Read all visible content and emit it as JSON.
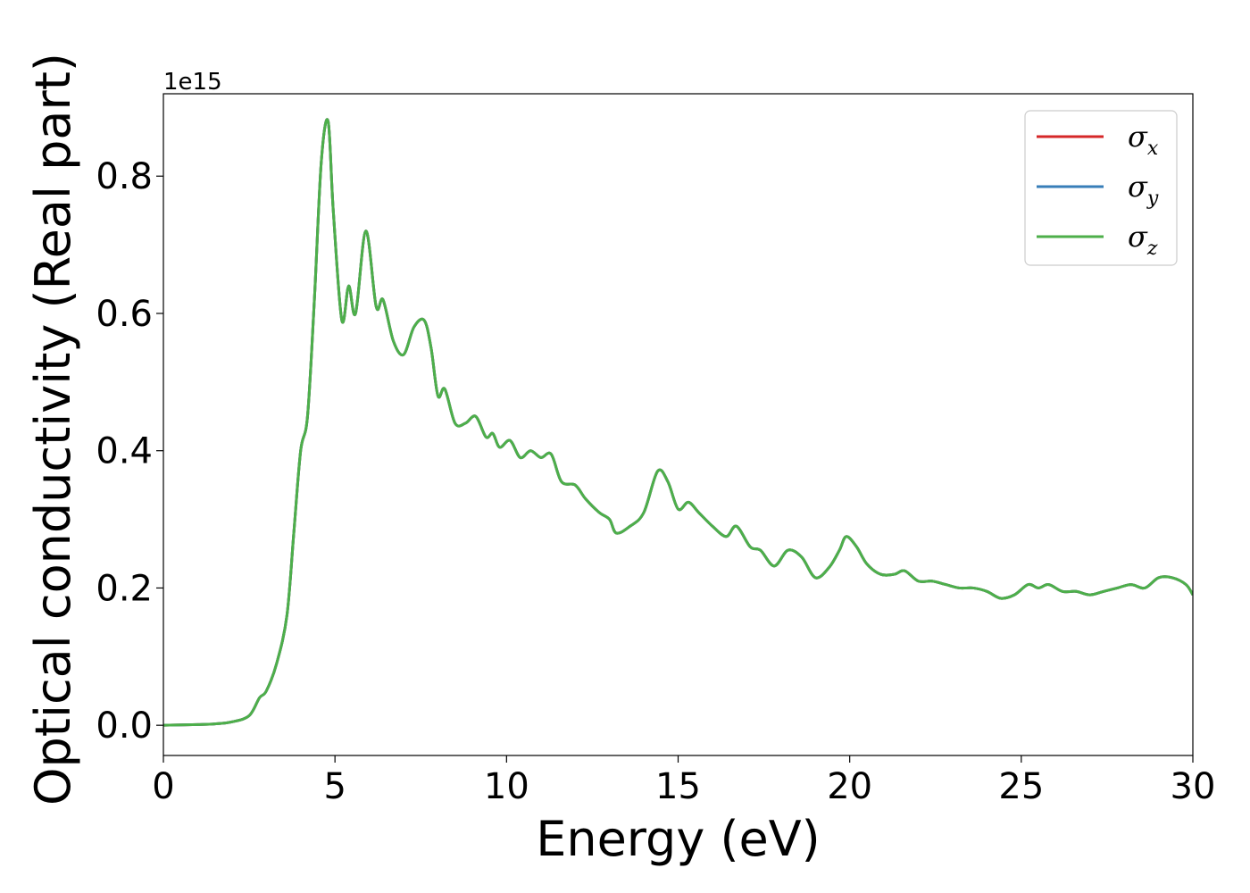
{
  "chart_data": {
    "type": "line",
    "title": "",
    "xlabel": "Energy (eV)",
    "ylabel": "Optical conductivity (Real part)",
    "offset_text": "1e15",
    "xlim": [
      0,
      30
    ],
    "ylim": [
      -0.044,
      0.92
    ],
    "xticks": [
      "0",
      "5",
      "10",
      "15",
      "20",
      "25",
      "30"
    ],
    "yticks": [
      "0.0",
      "0.2",
      "0.4",
      "0.6",
      "0.8"
    ],
    "grid": false,
    "legend": "top-right",
    "series": [
      {
        "symbol": "σ",
        "sub": "x",
        "color": "#d62728",
        "points": [
          [
            0,
            0.0
          ],
          [
            1,
            0.001
          ],
          [
            1.5,
            0.002
          ],
          [
            2,
            0.005
          ],
          [
            2.5,
            0.014
          ],
          [
            2.8,
            0.04
          ],
          [
            3.0,
            0.05
          ],
          [
            3.3,
            0.09
          ],
          [
            3.6,
            0.16
          ],
          [
            3.8,
            0.28
          ],
          [
            4.0,
            0.4
          ],
          [
            4.2,
            0.45
          ],
          [
            4.4,
            0.62
          ],
          [
            4.6,
            0.82
          ],
          [
            4.8,
            0.88
          ],
          [
            4.95,
            0.75
          ],
          [
            5.2,
            0.59
          ],
          [
            5.4,
            0.64
          ],
          [
            5.6,
            0.6
          ],
          [
            5.9,
            0.72
          ],
          [
            6.2,
            0.61
          ],
          [
            6.4,
            0.62
          ],
          [
            6.7,
            0.56
          ],
          [
            7.0,
            0.54
          ],
          [
            7.3,
            0.58
          ],
          [
            7.6,
            0.59
          ],
          [
            7.8,
            0.55
          ],
          [
            8.0,
            0.48
          ],
          [
            8.2,
            0.49
          ],
          [
            8.5,
            0.44
          ],
          [
            8.8,
            0.44
          ],
          [
            9.1,
            0.45
          ],
          [
            9.4,
            0.42
          ],
          [
            9.6,
            0.425
          ],
          [
            9.8,
            0.405
          ],
          [
            10.1,
            0.415
          ],
          [
            10.4,
            0.39
          ],
          [
            10.7,
            0.4
          ],
          [
            11.0,
            0.39
          ],
          [
            11.3,
            0.395
          ],
          [
            11.6,
            0.355
          ],
          [
            12.0,
            0.35
          ],
          [
            12.3,
            0.33
          ],
          [
            12.7,
            0.31
          ],
          [
            13.0,
            0.3
          ],
          [
            13.2,
            0.28
          ],
          [
            13.6,
            0.29
          ],
          [
            14.0,
            0.31
          ],
          [
            14.4,
            0.37
          ],
          [
            14.7,
            0.355
          ],
          [
            15.0,
            0.315
          ],
          [
            15.3,
            0.325
          ],
          [
            15.6,
            0.31
          ],
          [
            16.0,
            0.29
          ],
          [
            16.4,
            0.275
          ],
          [
            16.7,
            0.29
          ],
          [
            17.1,
            0.26
          ],
          [
            17.4,
            0.255
          ],
          [
            17.8,
            0.232
          ],
          [
            18.2,
            0.255
          ],
          [
            18.6,
            0.245
          ],
          [
            19.0,
            0.215
          ],
          [
            19.4,
            0.23
          ],
          [
            19.7,
            0.255
          ],
          [
            19.9,
            0.275
          ],
          [
            20.2,
            0.26
          ],
          [
            20.5,
            0.235
          ],
          [
            20.9,
            0.22
          ],
          [
            21.3,
            0.22
          ],
          [
            21.6,
            0.225
          ],
          [
            22.0,
            0.21
          ],
          [
            22.4,
            0.21
          ],
          [
            22.8,
            0.205
          ],
          [
            23.2,
            0.2
          ],
          [
            23.6,
            0.2
          ],
          [
            24.0,
            0.195
          ],
          [
            24.4,
            0.185
          ],
          [
            24.8,
            0.19
          ],
          [
            25.2,
            0.205
          ],
          [
            25.5,
            0.2
          ],
          [
            25.8,
            0.205
          ],
          [
            26.2,
            0.195
          ],
          [
            26.6,
            0.195
          ],
          [
            27.0,
            0.19
          ],
          [
            27.4,
            0.195
          ],
          [
            27.8,
            0.2
          ],
          [
            28.2,
            0.205
          ],
          [
            28.6,
            0.2
          ],
          [
            29.0,
            0.215
          ],
          [
            29.4,
            0.215
          ],
          [
            29.8,
            0.205
          ],
          [
            30.0,
            0.19
          ]
        ]
      },
      {
        "symbol": "σ",
        "sub": "y",
        "color": "#377eb8",
        "points": [
          [
            0,
            0.0
          ],
          [
            1,
            0.001
          ],
          [
            1.5,
            0.002
          ],
          [
            2,
            0.005
          ],
          [
            2.5,
            0.014
          ],
          [
            2.8,
            0.04
          ],
          [
            3.0,
            0.05
          ],
          [
            3.3,
            0.09
          ],
          [
            3.6,
            0.16
          ],
          [
            3.8,
            0.28
          ],
          [
            4.0,
            0.4
          ],
          [
            4.2,
            0.45
          ],
          [
            4.4,
            0.62
          ],
          [
            4.6,
            0.82
          ],
          [
            4.8,
            0.88
          ],
          [
            4.95,
            0.75
          ],
          [
            5.2,
            0.59
          ],
          [
            5.4,
            0.64
          ],
          [
            5.6,
            0.6
          ],
          [
            5.9,
            0.72
          ],
          [
            6.2,
            0.61
          ],
          [
            6.4,
            0.62
          ],
          [
            6.7,
            0.56
          ],
          [
            7.0,
            0.54
          ],
          [
            7.3,
            0.58
          ],
          [
            7.6,
            0.59
          ],
          [
            7.8,
            0.55
          ],
          [
            8.0,
            0.48
          ],
          [
            8.2,
            0.49
          ],
          [
            8.5,
            0.44
          ],
          [
            8.8,
            0.44
          ],
          [
            9.1,
            0.45
          ],
          [
            9.4,
            0.42
          ],
          [
            9.6,
            0.425
          ],
          [
            9.8,
            0.405
          ],
          [
            10.1,
            0.415
          ],
          [
            10.4,
            0.39
          ],
          [
            10.7,
            0.4
          ],
          [
            11.0,
            0.39
          ],
          [
            11.3,
            0.395
          ],
          [
            11.6,
            0.355
          ],
          [
            12.0,
            0.35
          ],
          [
            12.3,
            0.33
          ],
          [
            12.7,
            0.31
          ],
          [
            13.0,
            0.3
          ],
          [
            13.2,
            0.28
          ],
          [
            13.6,
            0.29
          ],
          [
            14.0,
            0.31
          ],
          [
            14.4,
            0.37
          ],
          [
            14.7,
            0.355
          ],
          [
            15.0,
            0.315
          ],
          [
            15.3,
            0.325
          ],
          [
            15.6,
            0.31
          ],
          [
            16.0,
            0.29
          ],
          [
            16.4,
            0.275
          ],
          [
            16.7,
            0.29
          ],
          [
            17.1,
            0.26
          ],
          [
            17.4,
            0.255
          ],
          [
            17.8,
            0.232
          ],
          [
            18.2,
            0.255
          ],
          [
            18.6,
            0.245
          ],
          [
            19.0,
            0.215
          ],
          [
            19.4,
            0.23
          ],
          [
            19.7,
            0.255
          ],
          [
            19.9,
            0.275
          ],
          [
            20.2,
            0.26
          ],
          [
            20.5,
            0.235
          ],
          [
            20.9,
            0.22
          ],
          [
            21.3,
            0.22
          ],
          [
            21.6,
            0.225
          ],
          [
            22.0,
            0.21
          ],
          [
            22.4,
            0.21
          ],
          [
            22.8,
            0.205
          ],
          [
            23.2,
            0.2
          ],
          [
            23.6,
            0.2
          ],
          [
            24.0,
            0.195
          ],
          [
            24.4,
            0.185
          ],
          [
            24.8,
            0.19
          ],
          [
            25.2,
            0.205
          ],
          [
            25.5,
            0.2
          ],
          [
            25.8,
            0.205
          ],
          [
            26.2,
            0.195
          ],
          [
            26.6,
            0.195
          ],
          [
            27.0,
            0.19
          ],
          [
            27.4,
            0.195
          ],
          [
            27.8,
            0.2
          ],
          [
            28.2,
            0.205
          ],
          [
            28.6,
            0.2
          ],
          [
            29.0,
            0.215
          ],
          [
            29.4,
            0.215
          ],
          [
            29.8,
            0.205
          ],
          [
            30.0,
            0.19
          ]
        ]
      },
      {
        "symbol": "σ",
        "sub": "z",
        "color": "#4daf4a",
        "points": [
          [
            0,
            0.0
          ],
          [
            1,
            0.001
          ],
          [
            1.5,
            0.002
          ],
          [
            2,
            0.005
          ],
          [
            2.5,
            0.014
          ],
          [
            2.8,
            0.04
          ],
          [
            3.0,
            0.05
          ],
          [
            3.3,
            0.09
          ],
          [
            3.6,
            0.16
          ],
          [
            3.8,
            0.28
          ],
          [
            4.0,
            0.4
          ],
          [
            4.2,
            0.45
          ],
          [
            4.4,
            0.62
          ],
          [
            4.6,
            0.82
          ],
          [
            4.8,
            0.88
          ],
          [
            4.95,
            0.75
          ],
          [
            5.2,
            0.59
          ],
          [
            5.4,
            0.64
          ],
          [
            5.6,
            0.6
          ],
          [
            5.9,
            0.72
          ],
          [
            6.2,
            0.61
          ],
          [
            6.4,
            0.62
          ],
          [
            6.7,
            0.56
          ],
          [
            7.0,
            0.54
          ],
          [
            7.3,
            0.58
          ],
          [
            7.6,
            0.59
          ],
          [
            7.8,
            0.55
          ],
          [
            8.0,
            0.48
          ],
          [
            8.2,
            0.49
          ],
          [
            8.5,
            0.44
          ],
          [
            8.8,
            0.44
          ],
          [
            9.1,
            0.45
          ],
          [
            9.4,
            0.42
          ],
          [
            9.6,
            0.425
          ],
          [
            9.8,
            0.405
          ],
          [
            10.1,
            0.415
          ],
          [
            10.4,
            0.39
          ],
          [
            10.7,
            0.4
          ],
          [
            11.0,
            0.39
          ],
          [
            11.3,
            0.395
          ],
          [
            11.6,
            0.355
          ],
          [
            12.0,
            0.35
          ],
          [
            12.3,
            0.33
          ],
          [
            12.7,
            0.31
          ],
          [
            13.0,
            0.3
          ],
          [
            13.2,
            0.28
          ],
          [
            13.6,
            0.29
          ],
          [
            14.0,
            0.31
          ],
          [
            14.4,
            0.37
          ],
          [
            14.7,
            0.355
          ],
          [
            15.0,
            0.315
          ],
          [
            15.3,
            0.325
          ],
          [
            15.6,
            0.31
          ],
          [
            16.0,
            0.29
          ],
          [
            16.4,
            0.275
          ],
          [
            16.7,
            0.29
          ],
          [
            17.1,
            0.26
          ],
          [
            17.4,
            0.255
          ],
          [
            17.8,
            0.232
          ],
          [
            18.2,
            0.255
          ],
          [
            18.6,
            0.245
          ],
          [
            19.0,
            0.215
          ],
          [
            19.4,
            0.23
          ],
          [
            19.7,
            0.255
          ],
          [
            19.9,
            0.275
          ],
          [
            20.2,
            0.26
          ],
          [
            20.5,
            0.235
          ],
          [
            20.9,
            0.22
          ],
          [
            21.3,
            0.22
          ],
          [
            21.6,
            0.225
          ],
          [
            22.0,
            0.21
          ],
          [
            22.4,
            0.21
          ],
          [
            22.8,
            0.205
          ],
          [
            23.2,
            0.2
          ],
          [
            23.6,
            0.2
          ],
          [
            24.0,
            0.195
          ],
          [
            24.4,
            0.185
          ],
          [
            24.8,
            0.19
          ],
          [
            25.2,
            0.205
          ],
          [
            25.5,
            0.2
          ],
          [
            25.8,
            0.205
          ],
          [
            26.2,
            0.195
          ],
          [
            26.6,
            0.195
          ],
          [
            27.0,
            0.19
          ],
          [
            27.4,
            0.195
          ],
          [
            27.8,
            0.2
          ],
          [
            28.2,
            0.205
          ],
          [
            28.6,
            0.2
          ],
          [
            29.0,
            0.215
          ],
          [
            29.4,
            0.215
          ],
          [
            29.8,
            0.205
          ],
          [
            30.0,
            0.19
          ]
        ]
      }
    ]
  }
}
